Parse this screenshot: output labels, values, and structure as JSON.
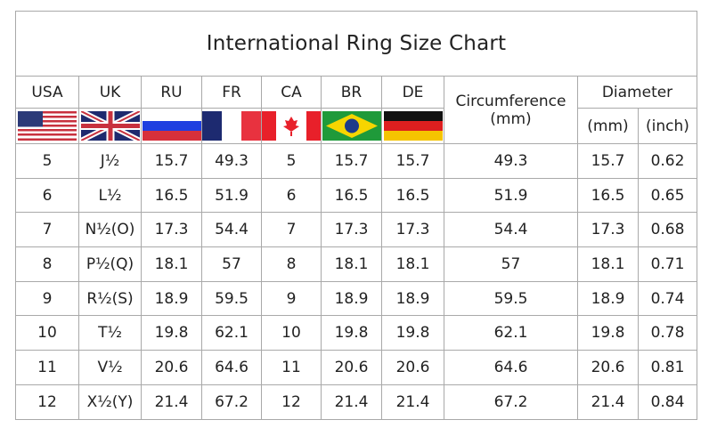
{
  "title": "International Ring Size Chart",
  "headers": {
    "usa": "USA",
    "uk": "UK",
    "ru": "RU",
    "fr": "FR",
    "ca": "CA",
    "br": "BR",
    "de": "DE",
    "circumference": "Circumference",
    "circumference_unit": "(mm)",
    "diameter": "Diameter",
    "diameter_mm": "(mm)",
    "diameter_inch": "(inch)"
  },
  "flags": [
    "usa-flag-icon",
    "uk-flag-icon",
    "russia-flag-icon",
    "france-flag-icon",
    "canada-flag-icon",
    "brazil-flag-icon",
    "germany-flag-icon"
  ],
  "chart_data": {
    "type": "table",
    "title": "International Ring Size Chart",
    "columns": [
      "USA",
      "UK",
      "RU",
      "FR",
      "CA",
      "BR",
      "DE",
      "Circumference (mm)",
      "Diameter (mm)",
      "Diameter (inch)"
    ],
    "rows": [
      [
        "5",
        "J½",
        "15.7",
        "49.3",
        "5",
        "15.7",
        "15.7",
        "49.3",
        "15.7",
        "0.62"
      ],
      [
        "6",
        "L½",
        "16.5",
        "51.9",
        "6",
        "16.5",
        "16.5",
        "51.9",
        "16.5",
        "0.65"
      ],
      [
        "7",
        "N½(O)",
        "17.3",
        "54.4",
        "7",
        "17.3",
        "17.3",
        "54.4",
        "17.3",
        "0.68"
      ],
      [
        "8",
        "P½(Q)",
        "18.1",
        "57",
        "8",
        "18.1",
        "18.1",
        "57",
        "18.1",
        "0.71"
      ],
      [
        "9",
        "R½(S)",
        "18.9",
        "59.5",
        "9",
        "18.9",
        "18.9",
        "59.5",
        "18.9",
        "0.74"
      ],
      [
        "10",
        "T½",
        "19.8",
        "62.1",
        "10",
        "19.8",
        "19.8",
        "62.1",
        "19.8",
        "0.78"
      ],
      [
        "11",
        "V½",
        "20.6",
        "64.6",
        "11",
        "20.6",
        "20.6",
        "64.6",
        "20.6",
        "0.81"
      ],
      [
        "12",
        "X½(Y)",
        "21.4",
        "67.2",
        "12",
        "21.4",
        "21.4",
        "67.2",
        "21.4",
        "0.84"
      ]
    ]
  }
}
